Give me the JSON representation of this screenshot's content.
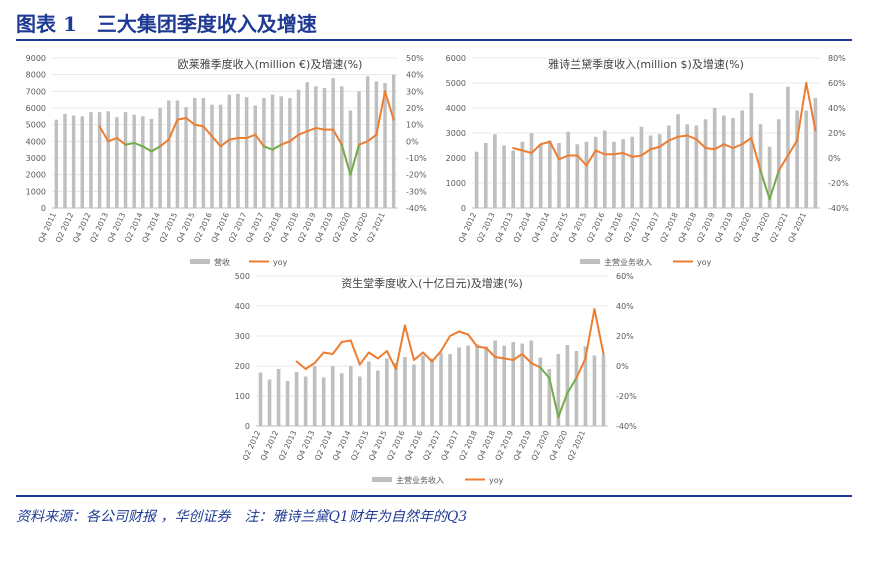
{
  "figure": {
    "title": "图表 1　三大集团季度收入及增速",
    "source": "资料来源：各公司财报 ，华创证券　注：雅诗兰黛Q1财年为自然年的Q3"
  },
  "colors": {
    "bar": "#bfbfbf",
    "line": "#ed7d31",
    "decline": "#70ad47",
    "axis": "#595959",
    "grid": "#e3e3e3"
  },
  "chart_data": [
    {
      "type": "bar",
      "title": "欧莱雅季度收入(million €)及增速(%)",
      "xlabel": "",
      "ylabel": "",
      "ylim": [
        0,
        9000
      ],
      "ylim2": [
        -40,
        50
      ],
      "yticks": [
        0,
        1000,
        2000,
        3000,
        4000,
        5000,
        6000,
        7000,
        8000,
        9000
      ],
      "yticks2": [
        "-40%",
        "-30%",
        "-20%",
        "-10%",
        "0%",
        "10%",
        "20%",
        "30%",
        "40%",
        "50%"
      ],
      "categories": [
        "Q4 2011",
        "Q1 2012",
        "Q2 2012",
        "Q3 2012",
        "Q4 2012",
        "Q1 2013",
        "Q2 2013",
        "Q3 2013",
        "Q4 2013",
        "Q1 2014",
        "Q2 2014",
        "Q3 2014",
        "Q4 2014",
        "Q1 2015",
        "Q2 2015",
        "Q3 2015",
        "Q4 2015",
        "Q1 2016",
        "Q2 2016",
        "Q3 2016",
        "Q4 2016",
        "Q1 2017",
        "Q2 2017",
        "Q3 2017",
        "Q4 2017",
        "Q1 2018",
        "Q2 2018",
        "Q3 2018",
        "Q4 2018",
        "Q1 2019",
        "Q2 2019",
        "Q3 2019",
        "Q4 2019",
        "Q1 2020",
        "Q2 2020",
        "Q3 2020",
        "Q4 2020",
        "Q1 2021",
        "Q2 2021",
        "Q3 2021"
      ],
      "tick_labels": [
        "Q4 2011",
        "Q2 2012",
        "Q4 2012",
        "Q2 2013",
        "Q4 2013",
        "Q2 2014",
        "Q4 2014",
        "Q2 2015",
        "Q4 2015",
        "Q2 2016",
        "Q4 2016",
        "Q2 2017",
        "Q4 2017",
        "Q2 2018",
        "Q4 2018",
        "Q2 2019",
        "Q4 2019",
        "Q2 2020",
        "Q4 2020",
        "Q2 2021"
      ],
      "series": [
        {
          "name": "营收",
          "values": [
            5300,
            5650,
            5550,
            5500,
            5750,
            5750,
            5800,
            5450,
            5750,
            5600,
            5500,
            5350,
            6000,
            6450,
            6450,
            6050,
            6600,
            6600,
            6200,
            6200,
            6800,
            6850,
            6650,
            6150,
            6600,
            6800,
            6700,
            6600,
            7100,
            7550,
            7300,
            7200,
            7800,
            7300,
            5850,
            7000,
            7900,
            7600,
            7500,
            8000
          ]
        },
        {
          "name": "yoy",
          "values": [
            null,
            null,
            null,
            null,
            null,
            9,
            0,
            2,
            -2,
            -1,
            -3,
            -6,
            -3,
            1,
            13,
            14,
            10,
            9,
            3,
            -3,
            1,
            2,
            2,
            4,
            -3,
            -5,
            -2,
            0,
            4,
            6,
            8,
            7,
            7,
            -2,
            -20,
            -2,
            0,
            4,
            30,
            13
          ]
        }
      ],
      "legend": [
        "营收",
        "yoy"
      ],
      "legend_position": "bottom"
    },
    {
      "type": "bar",
      "title": "雅诗兰黛季度收入(million $)及增速(%)",
      "xlabel": "",
      "ylabel": "",
      "ylim": [
        0,
        6000
      ],
      "ylim2": [
        -40,
        80
      ],
      "yticks": [
        0,
        1000,
        2000,
        3000,
        4000,
        5000,
        6000
      ],
      "yticks2": [
        "-40%",
        "-20%",
        "0%",
        "20%",
        "40%",
        "60%",
        "80%"
      ],
      "categories": [
        "Q4 2012",
        "Q1 2013",
        "Q2 2013",
        "Q3 2013",
        "Q4 2013",
        "Q1 2014",
        "Q2 2014",
        "Q3 2014",
        "Q4 2014",
        "Q1 2015",
        "Q2 2015",
        "Q3 2015",
        "Q4 2015",
        "Q1 2016",
        "Q2 2016",
        "Q3 2016",
        "Q4 2016",
        "Q1 2017",
        "Q2 2017",
        "Q3 2017",
        "Q4 2017",
        "Q1 2018",
        "Q2 2018",
        "Q3 2018",
        "Q4 2018",
        "Q1 2019",
        "Q2 2019",
        "Q3 2019",
        "Q4 2019",
        "Q1 2020",
        "Q2 2020",
        "Q3 2020",
        "Q4 2020",
        "Q1 2021",
        "Q2 2021",
        "Q3 2021",
        "Q4 2021",
        "Q1 2022"
      ],
      "tick_labels": [
        "Q4 2012",
        "Q2 2013",
        "Q4 2013",
        "Q2 2014",
        "Q4 2014",
        "Q2 2015",
        "Q4 2015",
        "Q2 2016",
        "Q4 2016",
        "Q2 2017",
        "Q4 2017",
        "Q2 2018",
        "Q4 2018",
        "Q2 2019",
        "Q4 2019",
        "Q2 2020",
        "Q4 2020",
        "Q2 2021",
        "Q4 2021"
      ],
      "series": [
        {
          "name": "主营业务收入",
          "values": [
            2250,
            2600,
            2950,
            2500,
            2300,
            2650,
            3000,
            2550,
            2700,
            2600,
            3050,
            2550,
            2650,
            2850,
            3100,
            2650,
            2750,
            2850,
            3250,
            2900,
            2950,
            3300,
            3750,
            3350,
            3300,
            3550,
            4000,
            3700,
            3600,
            3900,
            4600,
            3350,
            2450,
            3550,
            4850,
            3900,
            3900,
            4400
          ]
        },
        {
          "name": "yoy",
          "values": [
            null,
            null,
            null,
            null,
            8,
            6,
            4,
            11,
            13,
            -1,
            2,
            2,
            -6,
            6,
            3,
            3,
            4,
            1,
            2,
            7,
            9,
            14,
            17,
            18,
            15,
            8,
            7,
            11,
            8,
            11,
            16,
            -10,
            -33,
            -10,
            2,
            14,
            60,
            22
          ]
        }
      ],
      "legend": [
        "主营业务收入",
        "yoy"
      ],
      "legend_position": "bottom"
    },
    {
      "type": "bar",
      "title": "资生堂季度收入(十亿日元)及增速(%)",
      "xlabel": "",
      "ylabel": "",
      "ylim": [
        0,
        500
      ],
      "ylim2": [
        -40,
        60
      ],
      "yticks": [
        0,
        100,
        200,
        300,
        400,
        500
      ],
      "yticks2": [
        "-40%",
        "-20%",
        "0%",
        "20%",
        "40%",
        "60%"
      ],
      "categories": [
        "Q2 2012",
        "Q3 2012",
        "Q4 2012",
        "Q1 2013",
        "Q2 2013",
        "Q3 2013",
        "Q4 2013",
        "Q1 2014",
        "Q2 2014",
        "Q3 2014",
        "Q4 2014",
        "Q1 2015",
        "Q2 2015",
        "Q3 2015",
        "Q4 2015",
        "Q1 2016",
        "Q2 2016",
        "Q3 2016",
        "Q4 2016",
        "Q1 2017",
        "Q2 2017",
        "Q3 2017",
        "Q4 2017",
        "Q1 2018",
        "Q2 2018",
        "Q3 2018",
        "Q4 2018",
        "Q1 2019",
        "Q2 2019",
        "Q3 2019",
        "Q4 2019",
        "Q1 2020",
        "Q2 2020",
        "Q3 2020",
        "Q4 2020",
        "Q1 2021",
        "Q2 2021",
        "Q3 2021",
        "Q4 2021"
      ],
      "tick_labels": [
        "Q2 2012",
        "Q4 2012",
        "Q2 2013",
        "Q4 2013",
        "Q2 2014",
        "Q4 2014",
        "Q2 2015",
        "Q4 2015",
        "Q2 2016",
        "Q4 2016",
        "Q2 2017",
        "Q4 2017",
        "Q2 2018",
        "Q4 2018",
        "Q2 2019",
        "Q4 2019",
        "Q2 2020",
        "Q4 2020",
        "Q2 2021"
      ],
      "series": [
        {
          "name": "主营业务收入",
          "values": [
            178,
            155,
            190,
            150,
            180,
            165,
            200,
            162,
            200,
            176,
            200,
            165,
            215,
            185,
            225,
            210,
            230,
            205,
            235,
            225,
            245,
            240,
            262,
            268,
            272,
            265,
            285,
            268,
            280,
            275,
            285,
            228,
            190,
            240,
            270,
            250,
            265,
            235,
            238
          ]
        },
        {
          "name": "yoy",
          "values": [
            null,
            null,
            null,
            null,
            3,
            -2,
            2,
            9,
            8,
            16,
            17,
            1,
            9,
            5,
            10,
            -2,
            27,
            4,
            9,
            3,
            10,
            20,
            23,
            21,
            13,
            12,
            6,
            5,
            4,
            8,
            2,
            -1,
            -8,
            -34,
            -18,
            -8,
            5,
            38,
            8
          ]
        }
      ],
      "legend": [
        "主营业务收入",
        "yoy"
      ],
      "legend_position": "bottom"
    }
  ]
}
